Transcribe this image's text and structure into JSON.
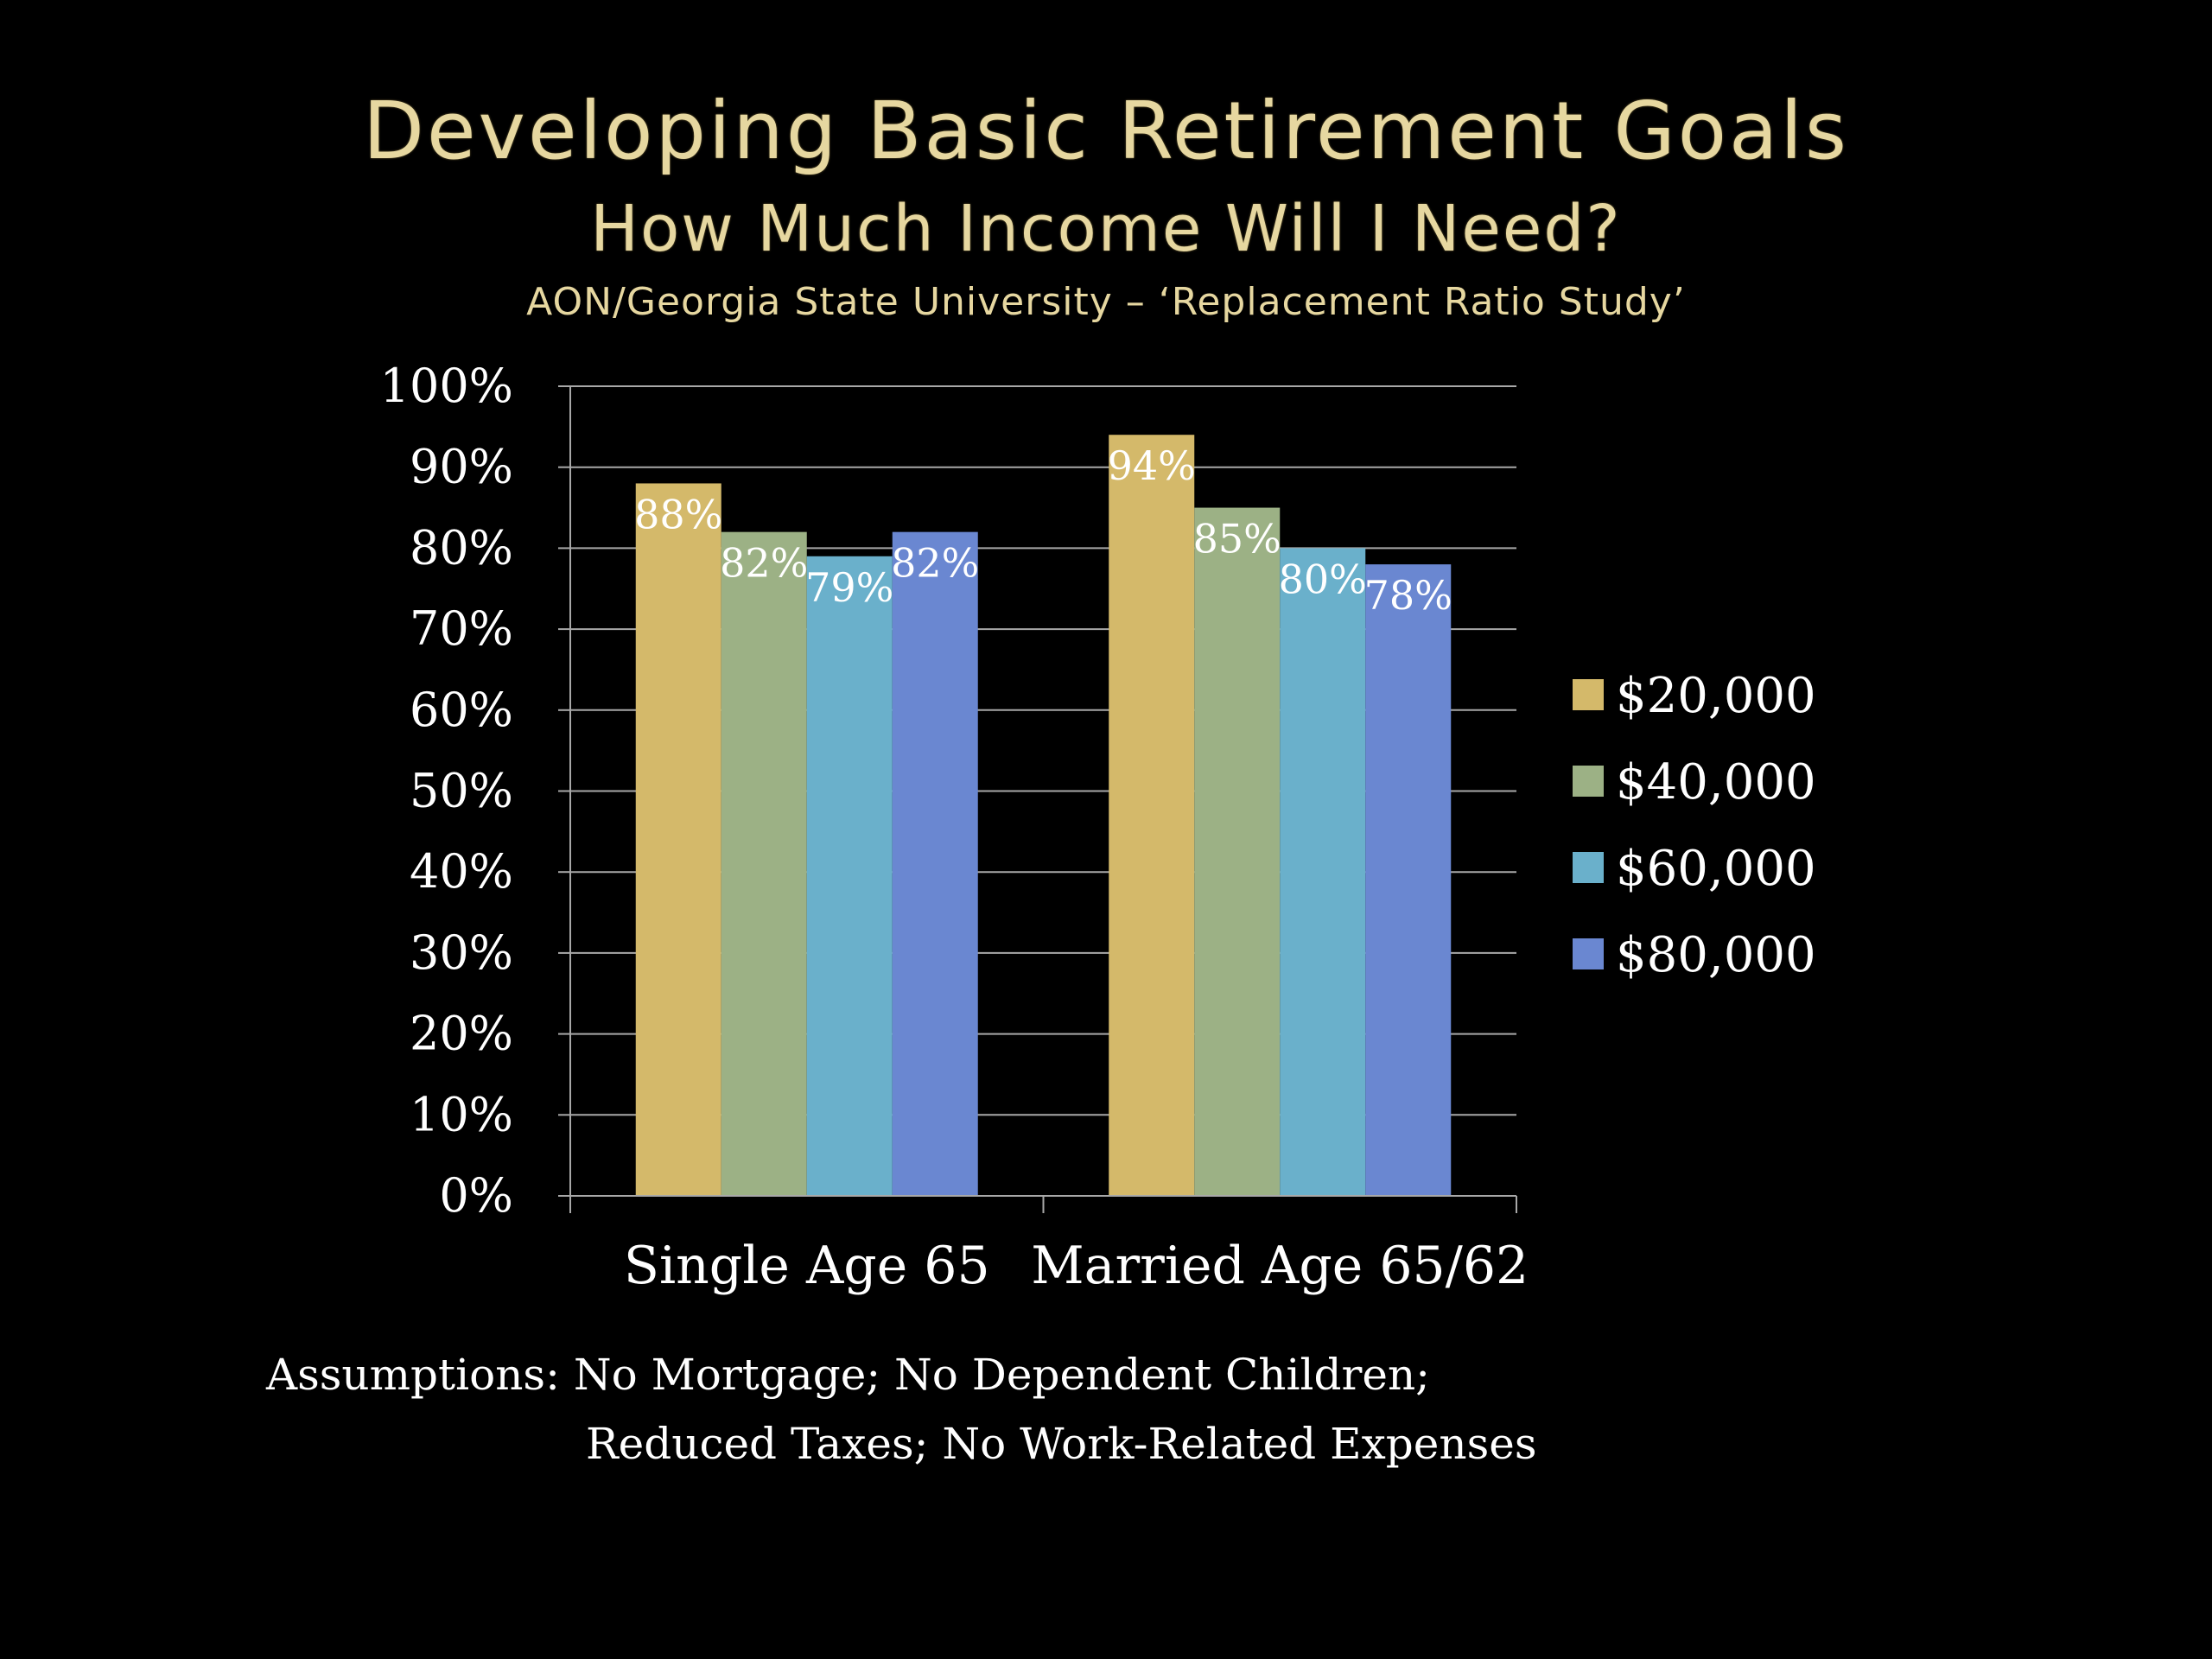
{
  "slide": {
    "title": "Developing Basic Retirement Goals",
    "subtitle": "How Much Income Will I Need?",
    "source": "AON/Georgia State University – ‘Replacement Ratio Study’",
    "assumptions_line1": "Assumptions: No Mortgage; No Dependent Children;",
    "assumptions_line2": "Reduced Taxes; No Work-Related Expenses"
  },
  "chart_data": {
    "type": "bar",
    "categories": [
      "Single Age 65",
      "Married Age 65/62"
    ],
    "series": [
      {
        "name": "$20,000",
        "values": [
          88,
          94
        ],
        "labels": [
          "88%",
          "94%"
        ],
        "color": "#d4b96a"
      },
      {
        "name": "$40,000",
        "values": [
          82,
          85
        ],
        "labels": [
          "82%",
          "85%"
        ],
        "color": "#9cb185"
      },
      {
        "name": "$60,000",
        "values": [
          79,
          80
        ],
        "labels": [
          "79%",
          "80%"
        ],
        "color": "#6ab0cb"
      },
      {
        "name": "$80,000",
        "values": [
          82,
          78
        ],
        "labels": [
          "82%",
          "78%"
        ],
        "color": "#6a87d1"
      }
    ],
    "y_ticks": [
      "0%",
      "10%",
      "20%",
      "30%",
      "40%",
      "50%",
      "60%",
      "70%",
      "80%",
      "90%",
      "100%"
    ],
    "ylim": [
      0,
      100
    ],
    "grid": true,
    "legend": "right",
    "title": "",
    "xlabel": "",
    "ylabel": ""
  }
}
